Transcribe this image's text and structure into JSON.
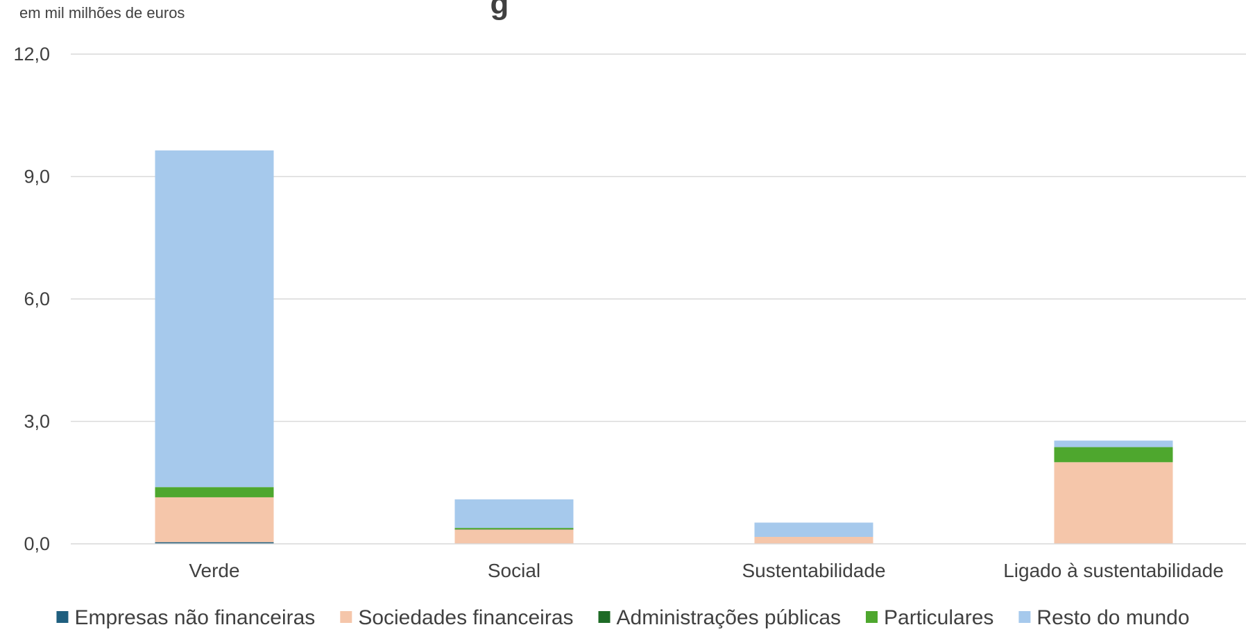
{
  "chart_data": {
    "type": "bar",
    "stacked": true,
    "title": "g",
    "unit_label": "em mil milhões de euros",
    "categories": [
      "Verde",
      "Social",
      "Sustentabilidade",
      "Ligado à sustentabilidade"
    ],
    "ylim": [
      0,
      12
    ],
    "yticks": [
      "0,0",
      "3,0",
      "6,0",
      "9,0",
      "12,0"
    ],
    "ytick_values": [
      0,
      3,
      6,
      9,
      12
    ],
    "grid": true,
    "legend_position": "bottom",
    "series": [
      {
        "name": "Empresas não financeiras",
        "color": "#1f5f7f",
        "values": [
          0.04,
          0.0,
          0.0,
          0.0
        ]
      },
      {
        "name": "Sociedades financeiras",
        "color": "#f5c6aa",
        "values": [
          1.1,
          0.35,
          0.17,
          2.0
        ]
      },
      {
        "name": "Administrações públicas",
        "color": "#1e6b26",
        "values": [
          0.0,
          0.01,
          0.0,
          0.0
        ]
      },
      {
        "name": "Particulares",
        "color": "#4ea72e",
        "values": [
          0.25,
          0.03,
          0.0,
          0.37
        ]
      },
      {
        "name": "Resto do mundo",
        "color": "#a6c9ec",
        "values": [
          8.25,
          0.7,
          0.35,
          0.16
        ]
      }
    ]
  }
}
